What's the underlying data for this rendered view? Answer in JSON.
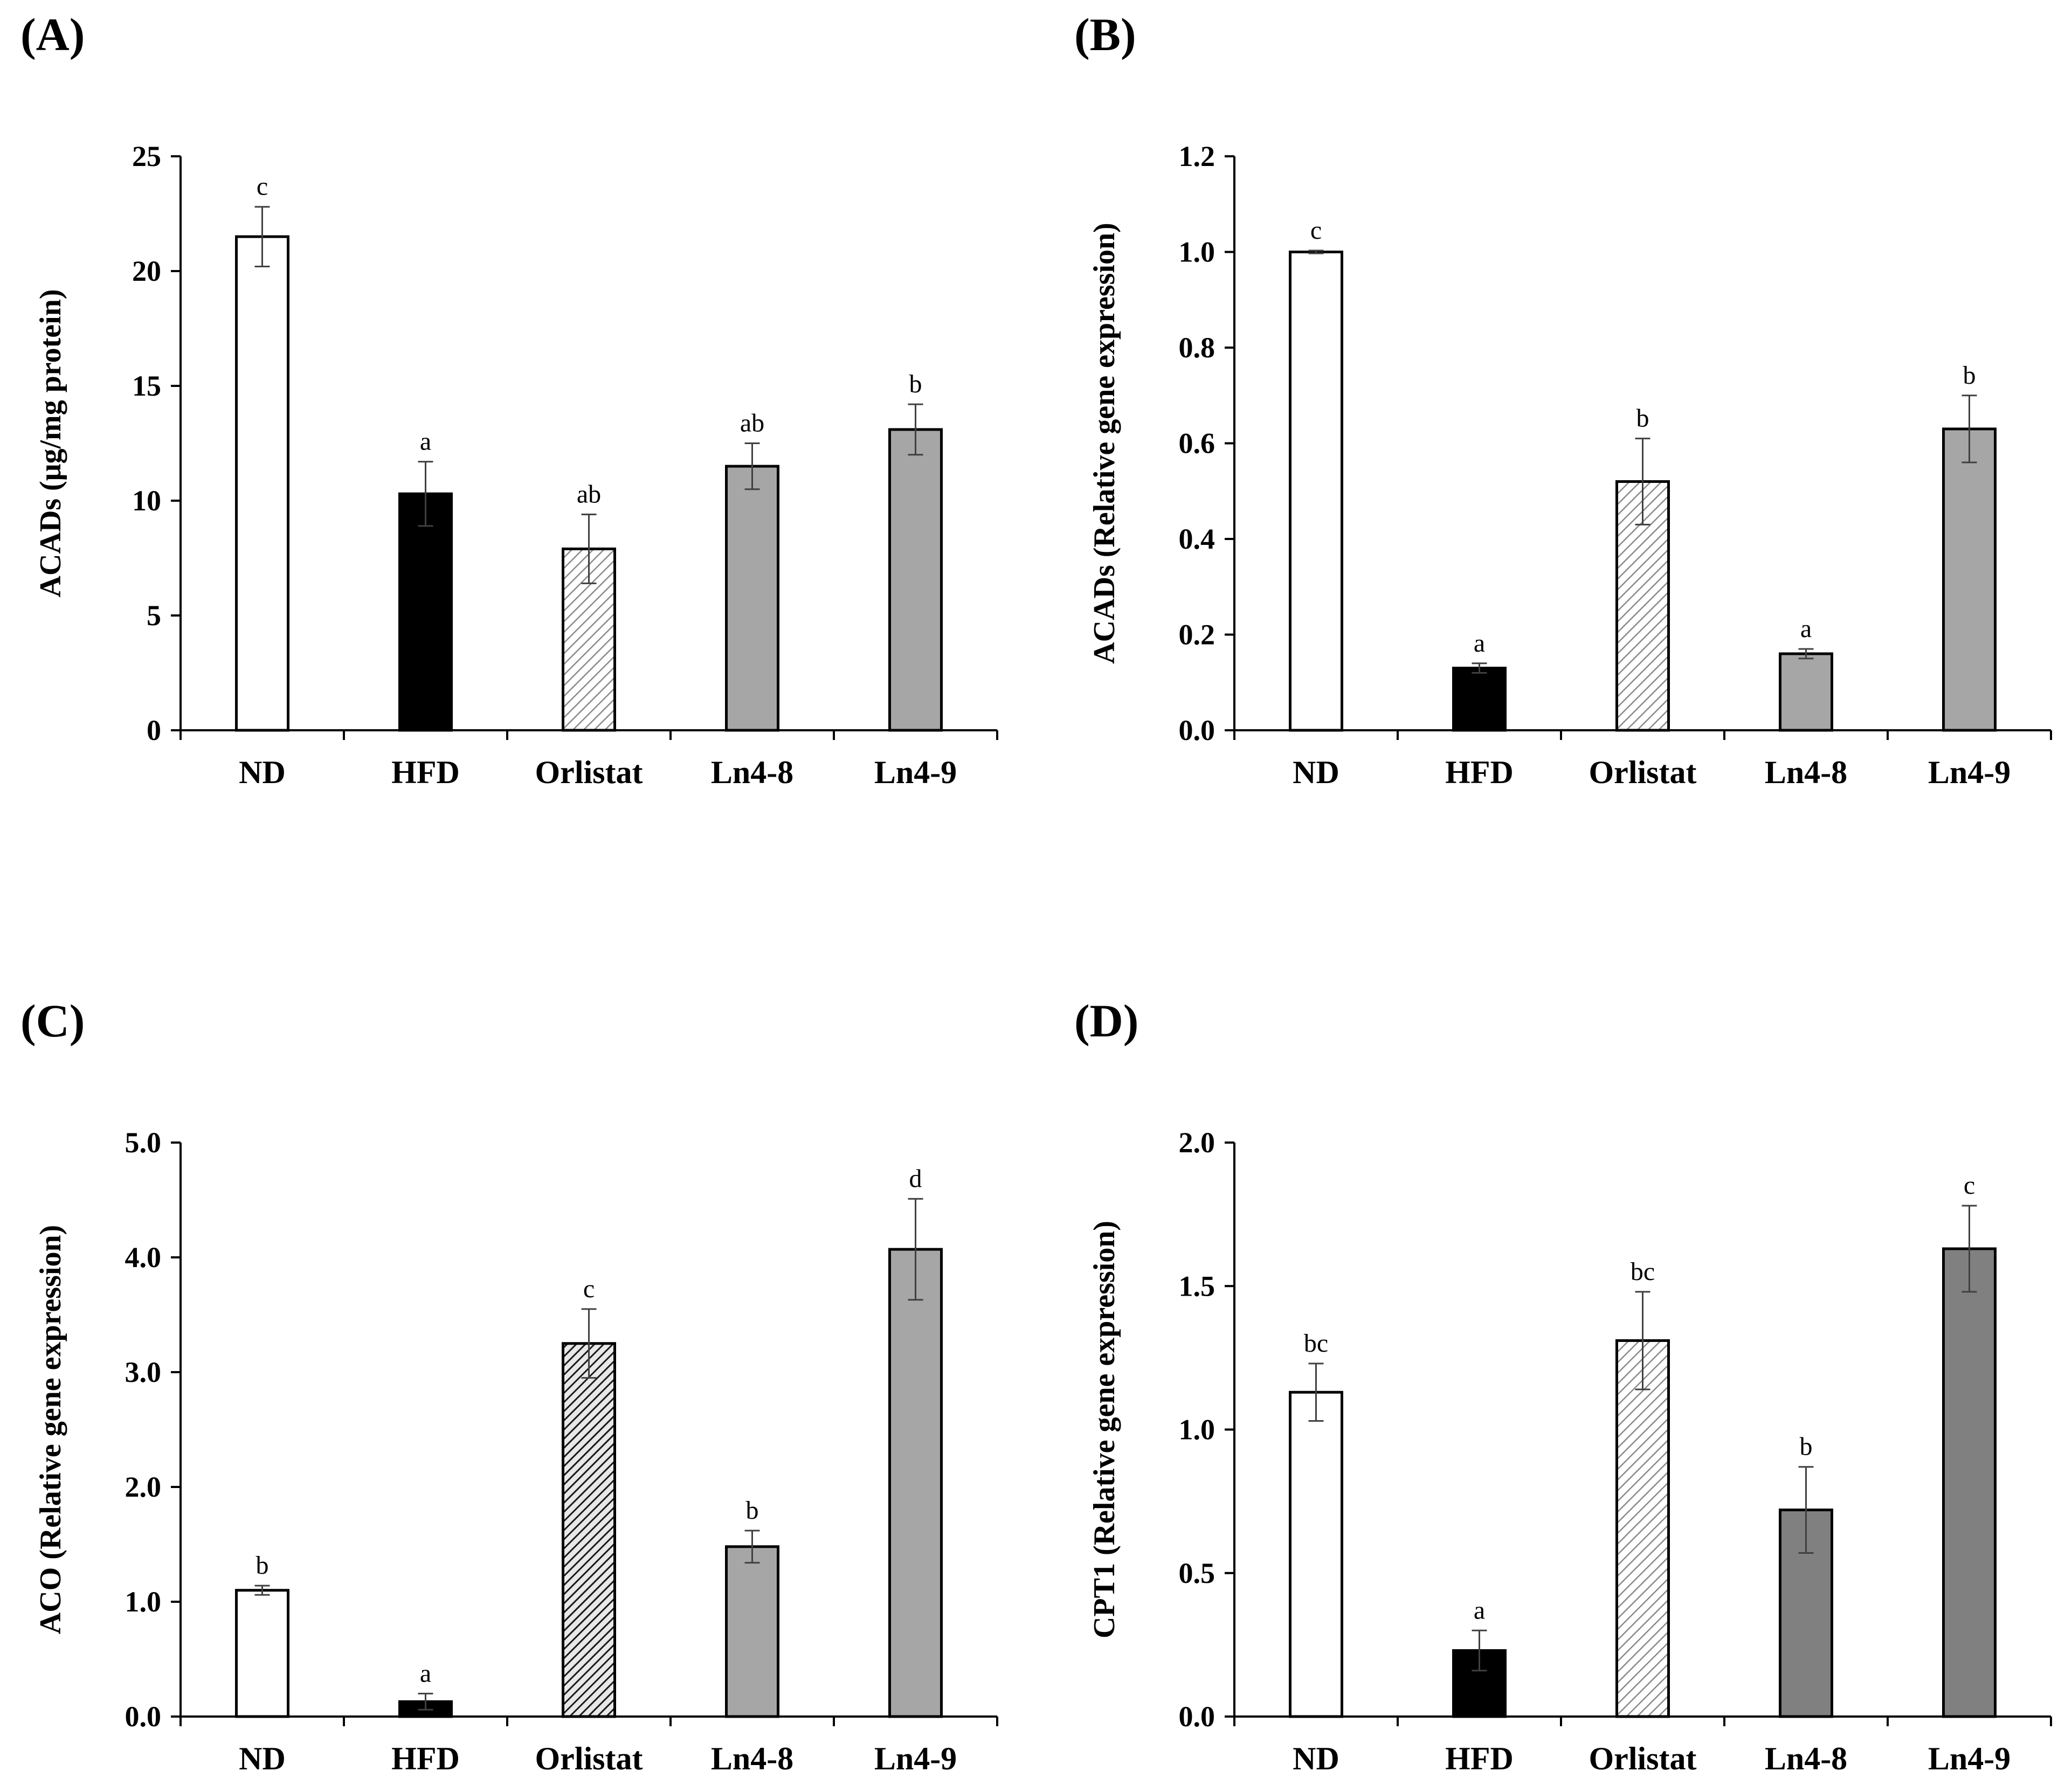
{
  "chart_data": [
    {
      "type": "bar",
      "panel_label": "(A)",
      "ylabel": "ACADs (μg/mg protein)",
      "ylim": [
        0,
        25
      ],
      "yticks": [
        "0",
        "5",
        "10",
        "15",
        "20",
        "25"
      ],
      "categories": [
        "ND",
        "HFD",
        "Orlistat",
        "Ln4-8",
        "Ln4-9"
      ],
      "values": [
        21.5,
        10.3,
        7.9,
        11.5,
        13.1
      ],
      "errors": [
        1.3,
        1.4,
        1.5,
        1.0,
        1.1
      ],
      "letters": [
        "c",
        "a",
        "ab",
        "ab",
        "b"
      ],
      "fills": [
        "white",
        "black",
        "hatch-light",
        "gray",
        "gray"
      ]
    },
    {
      "type": "bar",
      "panel_label": "(B)",
      "ylabel": "ACADs (Relative gene expression)",
      "ylim": [
        0,
        1.2
      ],
      "yticks": [
        "0.0",
        "0.2",
        "0.4",
        "0.6",
        "0.8",
        "1.0",
        "1.2"
      ],
      "categories": [
        "ND",
        "HFD",
        "Orlistat",
        "Ln4-8",
        "Ln4-9"
      ],
      "values": [
        1.0,
        0.13,
        0.52,
        0.16,
        0.63
      ],
      "errors": [
        0.003,
        0.01,
        0.09,
        0.01,
        0.07
      ],
      "letters": [
        "c",
        "a",
        "b",
        "a",
        "b"
      ],
      "fills": [
        "white",
        "black",
        "hatch-light",
        "gray",
        "gray"
      ]
    },
    {
      "type": "bar",
      "panel_label": "(C)",
      "ylabel": "ACO (Relative gene expression)",
      "ylim": [
        0,
        5
      ],
      "yticks": [
        "0.0",
        "1.0",
        "2.0",
        "3.0",
        "4.0",
        "5.0"
      ],
      "categories": [
        "ND",
        "HFD",
        "Orlistat",
        "Ln4-8",
        "Ln4-9"
      ],
      "values": [
        1.1,
        0.13,
        3.25,
        1.48,
        4.07
      ],
      "errors": [
        0.04,
        0.07,
        0.3,
        0.14,
        0.44
      ],
      "letters": [
        "b",
        "a",
        "c",
        "b",
        "d"
      ],
      "fills": [
        "white",
        "black",
        "hatch-dark",
        "gray",
        "gray"
      ]
    },
    {
      "type": "bar",
      "panel_label": "(D)",
      "ylabel": "CPT1 (Relative gene expression)",
      "ylim": [
        0,
        2
      ],
      "yticks": [
        "0.0",
        "0.5",
        "1.0",
        "1.5",
        "2.0"
      ],
      "categories": [
        "ND",
        "HFD",
        "Orlistat",
        "Ln4-8",
        "Ln4-9"
      ],
      "values": [
        1.13,
        0.23,
        1.31,
        0.72,
        1.63
      ],
      "errors": [
        0.1,
        0.07,
        0.17,
        0.15,
        0.15
      ],
      "letters": [
        "bc",
        "a",
        "bc",
        "b",
        "c"
      ],
      "fills": [
        "white",
        "black",
        "hatch-light",
        "dark-gray",
        "dark-gray"
      ]
    }
  ],
  "colors": {
    "white": "#ffffff",
    "black": "#000000",
    "gray": "#a6a6a6",
    "dark_gray": "#808080",
    "axis": "#000000",
    "error_bar": "#404040"
  }
}
